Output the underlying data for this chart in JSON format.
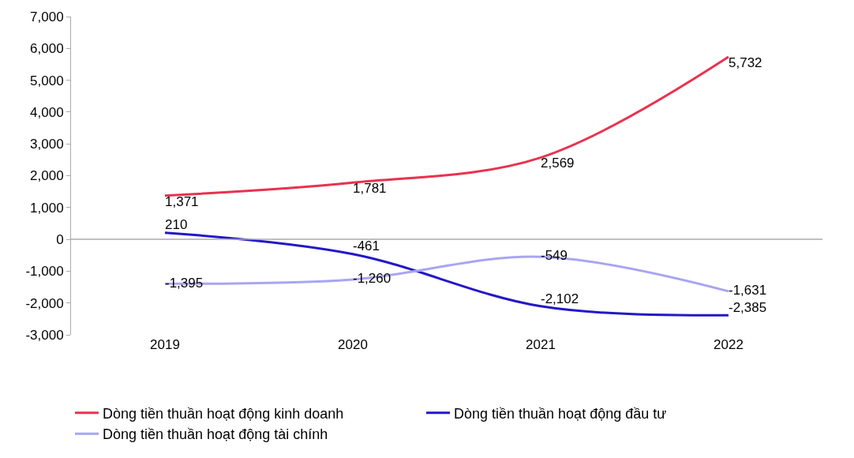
{
  "chart_data": {
    "type": "line",
    "categories": [
      "2019",
      "2020",
      "2021",
      "2022"
    ],
    "series": [
      {
        "name": "Dòng tiền thuần hoạt động kinh doanh",
        "color": "#e8324f",
        "values": [
          1371,
          1781,
          2569,
          5732
        ],
        "value_labels": [
          "1,371",
          "1,781",
          "2,569",
          "5,732"
        ]
      },
      {
        "name": "Dòng tiền thuần hoạt động đầu tư",
        "color": "#2317c8",
        "values": [
          210,
          -461,
          -2102,
          -2385
        ],
        "value_labels": [
          "210",
          "-461",
          "-2,102",
          "-2,385"
        ]
      },
      {
        "name": "Dòng tiền thuần hoạt động tài chính",
        "color": "#a9a5f2",
        "values": [
          -1395,
          -1260,
          -549,
          -1631
        ],
        "value_labels": [
          "-1,395",
          "-1,260",
          "-549",
          "-1,631"
        ]
      }
    ],
    "ylim": [
      -3000,
      7000
    ],
    "yticks": [
      {
        "value": -3000,
        "label": "-3,000"
      },
      {
        "value": -2000,
        "label": "-2,000"
      },
      {
        "value": -1000,
        "label": "-1,000"
      },
      0,
      {
        "value": 1000,
        "label": "1,000"
      },
      {
        "value": 2000,
        "label": "2,000"
      },
      {
        "value": 3000,
        "label": "3,000"
      },
      {
        "value": 4000,
        "label": "4,000"
      },
      {
        "value": 5000,
        "label": "5,000"
      },
      {
        "value": 6000,
        "label": "6,000"
      },
      {
        "value": 7000,
        "label": "7,000"
      }
    ],
    "ref_lines": [
      {
        "axis": "y",
        "value": 0,
        "color": "#aaaaaa"
      }
    ],
    "legend": "bottom",
    "marker": "none",
    "line_style": "solid"
  }
}
